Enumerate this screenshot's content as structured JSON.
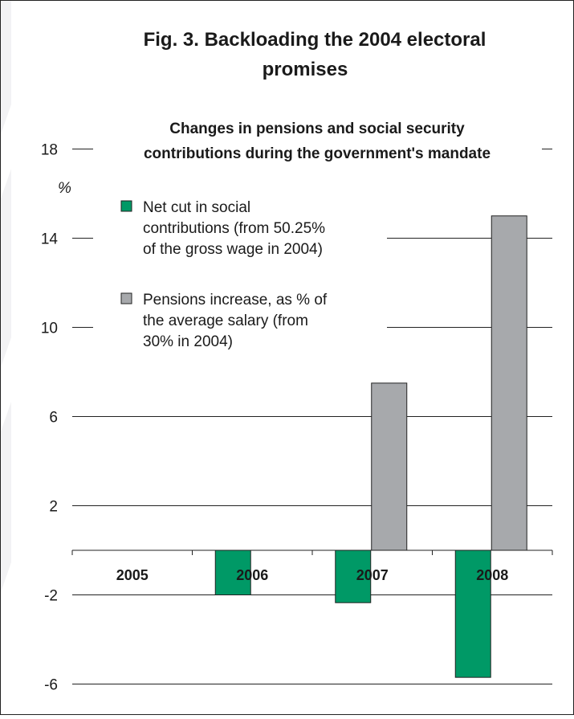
{
  "chart_data": {
    "type": "bar",
    "title": "Fig. 3. Backloading the 2004 electoral promises",
    "subtitle_lines": [
      "Changes in pensions and social security",
      "contributions  during the government's mandate"
    ],
    "ylabel": "%",
    "ylim": [
      -6,
      18
    ],
    "yticks": [
      18,
      14,
      10,
      6,
      2,
      -2,
      -6
    ],
    "categories": [
      "2005",
      "2006",
      "2007",
      "2008"
    ],
    "series": [
      {
        "name": "Net cut in social contributions (from 50.25% of the gross wage in 2004)",
        "legend_lines": [
          "Net cut in social",
          "contributions (from 50.25%",
          "of the gross wage in 2004)"
        ],
        "color": "#009966",
        "values": [
          0,
          -2.0,
          -2.35,
          -5.7
        ]
      },
      {
        "name": "Pensions increase, as % of the average salary (from 30% in 2004)",
        "legend_lines": [
          "Pensions increase, as % of",
          "the average salary (from",
          "30% in 2004)"
        ],
        "color": "#a7a9ac",
        "values": [
          0,
          0,
          7.5,
          15.0
        ]
      }
    ],
    "grid": true,
    "legend_position": "top-left inside plot"
  }
}
